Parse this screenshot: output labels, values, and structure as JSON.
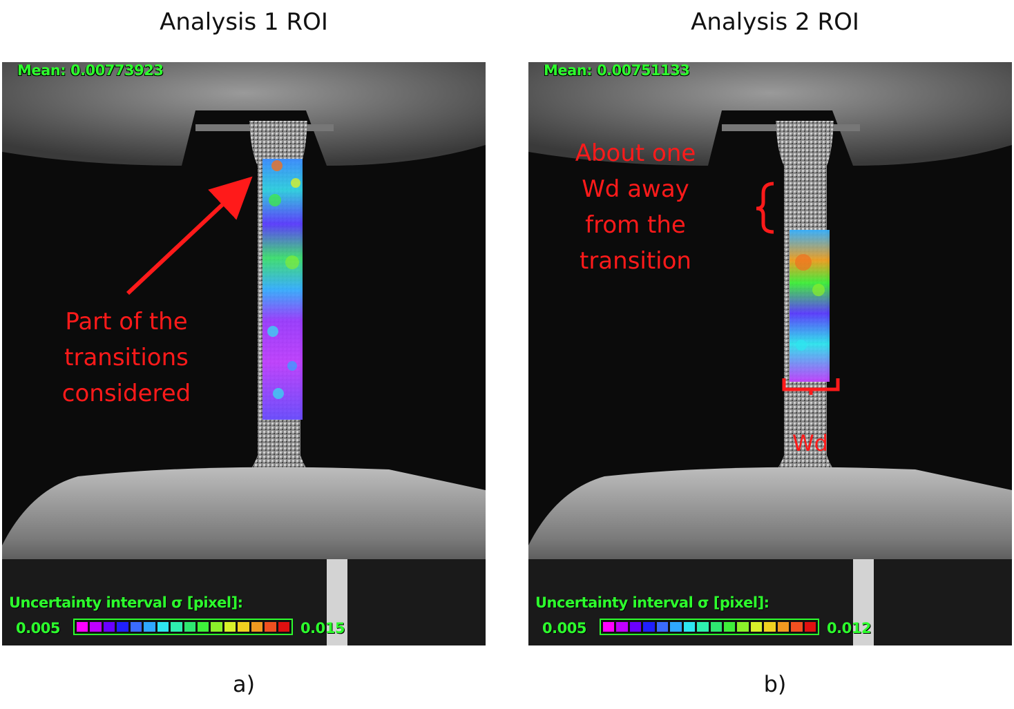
{
  "panels": [
    {
      "heading": "Analysis 1 ROI",
      "caption": "a)",
      "mean_text": "Mean: 0.00773923",
      "legend_title": "Uncertainty interval σ [pixel]:",
      "legend_min": "0.005",
      "legend_max": "0.015",
      "annotation_lines": [
        "Part of the",
        "transitions",
        "considered"
      ]
    },
    {
      "heading": "Analysis 2 ROI",
      "caption": "b)",
      "mean_text": "Mean: 0.00751133",
      "legend_title": "Uncertainty interval σ [pixel]:",
      "legend_min": "0.005",
      "legend_max": "0.012",
      "annotation_lines": [
        "About one",
        "Wd away",
        "from the",
        "transition"
      ],
      "width_label": "Wd"
    }
  ],
  "colors": {
    "overlay_text": "#2dff2d",
    "annotation": "#ff1a1a",
    "colormap": [
      "#ff00ff",
      "#c000ff",
      "#6a00ff",
      "#2020ff",
      "#3a6cff",
      "#2fa8ff",
      "#2ee6f0",
      "#2ef0b0",
      "#2ee870",
      "#3ef03a",
      "#8cf02a",
      "#d8f02a",
      "#f0d020",
      "#f09a20",
      "#f05020",
      "#e01010"
    ]
  }
}
